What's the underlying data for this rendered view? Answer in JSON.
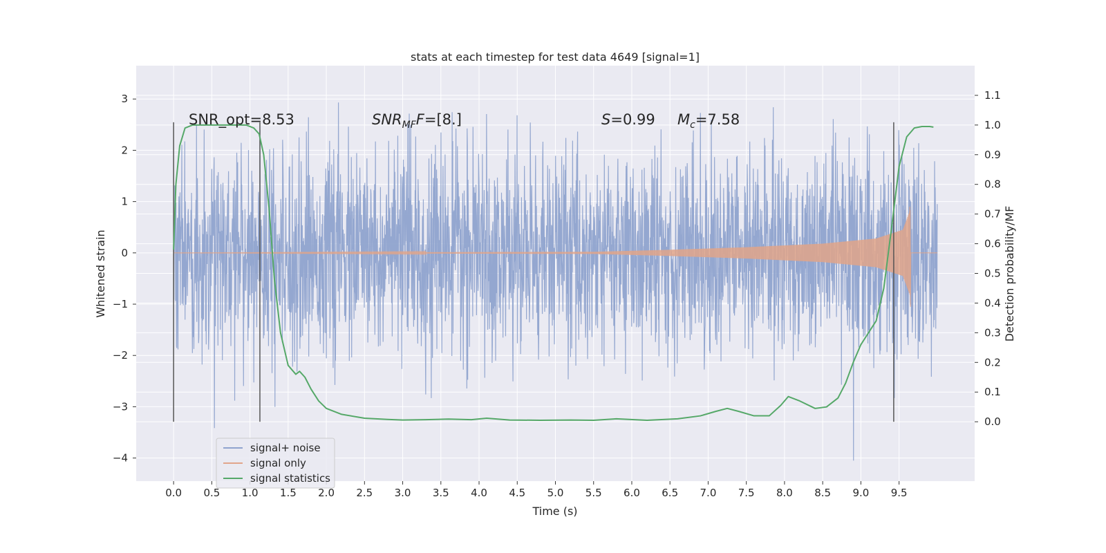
{
  "chart_data": {
    "type": "line",
    "title": "stats at each timestep for test data 4649 [signal=1]",
    "xlabel": "Time (s)",
    "ylabel_left": "Whitened strain",
    "ylabel_right": "Detection probability/MF",
    "xlim": [
      -0.49,
      10.49
    ],
    "ylim_left": [
      -4.45,
      3.65
    ],
    "ylim_right": [
      -0.2,
      1.2
    ],
    "x_ticks": [
      "0.0",
      "0.5",
      "1.0",
      "1.5",
      "2.0",
      "2.5",
      "3.0",
      "3.5",
      "4.0",
      "4.5",
      "5.0",
      "5.5",
      "6.0",
      "6.5",
      "7.0",
      "7.5",
      "8.0",
      "8.5",
      "9.0",
      "9.5"
    ],
    "y_ticks_left": [
      "3",
      "2",
      "1",
      "0",
      "−1",
      "−2",
      "−3",
      "−4"
    ],
    "y_ticks_right": [
      "1.1",
      "1.0",
      "0.9",
      "0.8",
      "0.7",
      "0.6",
      "0.5",
      "0.4",
      "0.3",
      "0.2",
      "0.1",
      "0.0"
    ],
    "grid": true,
    "background": "#eaeaf2",
    "colors": {
      "noise": "#8fa3ce",
      "signal": "#e1a58a",
      "stats": "#55a868",
      "vline": "#555555"
    },
    "annotations": {
      "snr_opt": "SNR_opt=8.53",
      "snr_mf_prefix": "SNR",
      "snr_mf_sub": "MF",
      "snr_mf_value": "=[8.]",
      "s_sym": "S",
      "s_value": "=0.99",
      "mc_sym": "M",
      "mc_sub": "c",
      "mc_value": "=7.58"
    },
    "vertical_lines_x": [
      0.0,
      1.13,
      9.43
    ],
    "signal_plus_noise": {
      "name": "signal+ noise",
      "x_range": [
        0.0,
        10.0
      ],
      "typical_amplitude": 1.35,
      "min": -4.05,
      "max": 3.38
    },
    "signal_only": {
      "name": "signal only",
      "x_range": [
        0.0,
        10.0
      ],
      "envelope": [
        {
          "x": 0.0,
          "amp": 0.0
        },
        {
          "x": 5.5,
          "amp": 0.02
        },
        {
          "x": 6.5,
          "amp": 0.06
        },
        {
          "x": 7.5,
          "amp": 0.11
        },
        {
          "x": 8.5,
          "amp": 0.18
        },
        {
          "x": 9.2,
          "amp": 0.28
        },
        {
          "x": 9.55,
          "amp": 0.45
        },
        {
          "x": 9.65,
          "amp": 0.85
        }
      ],
      "merger_x": 9.65
    },
    "signal_statistics": {
      "name": "signal statistics",
      "x": [
        0.0,
        0.03,
        0.08,
        0.15,
        0.25,
        0.4,
        0.6,
        0.8,
        0.95,
        1.05,
        1.12,
        1.18,
        1.25,
        1.32,
        1.4,
        1.5,
        1.6,
        1.65,
        1.72,
        1.8,
        1.9,
        2.0,
        2.2,
        2.5,
        2.8,
        3.0,
        3.3,
        3.6,
        3.9,
        4.1,
        4.4,
        4.8,
        5.2,
        5.5,
        5.8,
        6.2,
        6.6,
        6.9,
        7.1,
        7.25,
        7.4,
        7.6,
        7.8,
        7.95,
        8.05,
        8.2,
        8.4,
        8.55,
        8.7,
        8.8,
        8.9,
        9.0,
        9.1,
        9.2,
        9.3,
        9.4,
        9.5,
        9.6,
        9.7,
        9.8,
        9.9,
        9.95
      ],
      "values": [
        0.58,
        0.8,
        0.93,
        0.99,
        1.0,
        1.0,
        1.0,
        1.0,
        1.0,
        0.99,
        0.97,
        0.9,
        0.72,
        0.48,
        0.3,
        0.19,
        0.16,
        0.17,
        0.15,
        0.11,
        0.07,
        0.045,
        0.025,
        0.012,
        0.008,
        0.006,
        0.007,
        0.009,
        0.007,
        0.012,
        0.006,
        0.005,
        0.006,
        0.005,
        0.01,
        0.005,
        0.01,
        0.02,
        0.035,
        0.045,
        0.035,
        0.02,
        0.02,
        0.055,
        0.085,
        0.07,
        0.045,
        0.05,
        0.08,
        0.13,
        0.2,
        0.26,
        0.3,
        0.34,
        0.45,
        0.65,
        0.86,
        0.96,
        0.99,
        0.995,
        0.995,
        0.993
      ]
    },
    "legend": {
      "placement": "lower-left",
      "entries": [
        "signal+ noise",
        "signal only",
        "signal statistics"
      ]
    }
  }
}
